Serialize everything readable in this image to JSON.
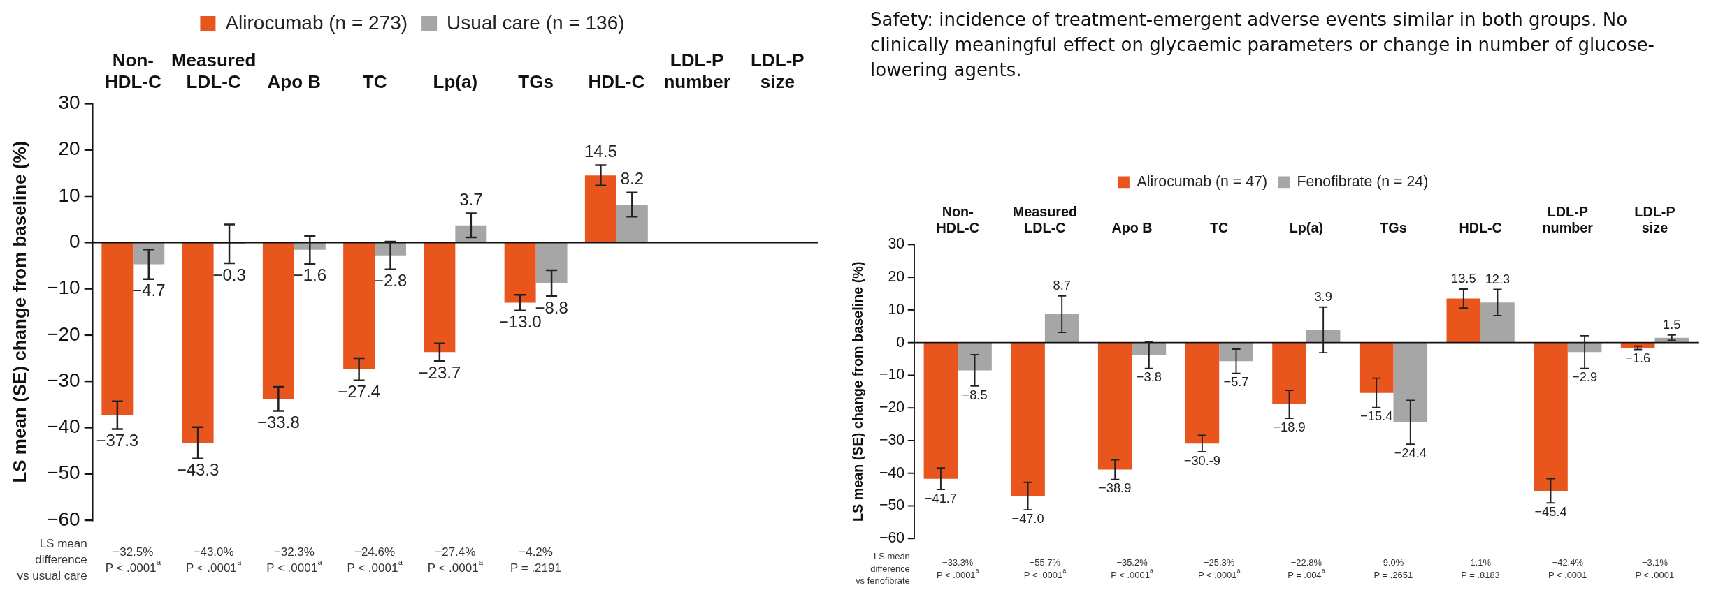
{
  "chart_data": [
    {
      "type": "bar",
      "ylabel": "LS mean (SE) change from baseline (%)",
      "categories": [
        "Non-\nHDL-C",
        "Measured\nLDL-C",
        "Apo B",
        "TC",
        "Lp(a)",
        "TGs",
        "HDL-C",
        "LDL-P\nnumber",
        "LDL-P\nsize"
      ],
      "series": [
        {
          "name": "Alirocumab (n = 273)",
          "color": "#e8561e",
          "values": [
            -37.3,
            -43.3,
            -33.8,
            -27.4,
            -23.7,
            -13.0,
            14.5,
            null,
            null
          ],
          "errors": [
            3,
            3.4,
            2.6,
            2.4,
            1.9,
            1.7,
            2.2,
            null,
            null
          ],
          "value_labels": [
            "−37.3",
            "−43.3",
            "−33.8",
            "−27.4",
            "−23.7",
            "−13.0",
            "14.5",
            null,
            null
          ]
        },
        {
          "name": "Usual care (n = 136)",
          "color": "#a6a6a6",
          "values": [
            -4.7,
            -0.3,
            -1.6,
            -2.8,
            3.7,
            -8.8,
            8.2,
            null,
            null
          ],
          "errors": [
            3.2,
            4.2,
            3,
            3,
            2.6,
            2.8,
            2.6,
            null,
            null
          ],
          "value_labels": [
            "−4.7",
            "−0.3",
            "−1.6",
            "−2.8",
            "3.7",
            "−8.8",
            "8.2",
            null,
            null
          ]
        }
      ],
      "ylim": [
        -60,
        30
      ],
      "yticks": [
        -60,
        -50,
        -40,
        -30,
        -20,
        -10,
        0,
        10,
        20,
        30
      ],
      "legend": "top",
      "annotations": [
        "LS mean\ndifference\nvs usual care",
        "−32.5%\nP < .0001$^{a}$",
        "−43.0%\nP < .0001$^{a}$",
        "−32.3%\nP < .0001$^{a}$",
        "−24.6%\nP < .0001$^{a}$",
        "−27.4%\nP < .0001$^{a}$",
        "−4.2%\nP = .2191"
      ]
    },
    {
      "type": "bar",
      "ylabel": "LS mean (SE) change from baseline (%)",
      "categories": [
        "Non-\nHDL-C",
        "Measured\nLDL-C",
        "Apo B",
        "TC",
        "Lp(a)",
        "TGs",
        "HDL-C",
        "LDL-P\nnumber",
        "LDL-P\nsize"
      ],
      "series": [
        {
          "name": "Alirocumab (n = 47)",
          "color": "#e8561e",
          "values": [
            -41.7,
            -47.0,
            -38.9,
            -30.9,
            -18.9,
            -15.4,
            13.5,
            -45.4,
            -1.6
          ],
          "errors": [
            3.3,
            4.2,
            3,
            2.5,
            4.3,
            4.5,
            2.9,
            3.7,
            0.5
          ],
          "value_labels": [
            "−41.7",
            "−47.0",
            "−38.9",
            "−30.-9",
            "−18.9",
            "−15.4",
            "13.5",
            "−45.4",
            "−1.6"
          ]
        },
        {
          "name": "Fenofibrate (n = 24)",
          "color": "#a6a6a6",
          "values": [
            -8.5,
            8.7,
            -3.8,
            -5.7,
            3.9,
            -24.4,
            12.3,
            -2.9,
            1.5
          ],
          "errors": [
            4.8,
            5.6,
            4.1,
            3.7,
            7,
            6.7,
            4,
            5,
            0.8
          ],
          "value_labels": [
            "−8.5",
            "8.7",
            "−3.8",
            "−5.7",
            "3.9",
            "−24.4",
            "12.3",
            "−2.9",
            "1.5"
          ]
        }
      ],
      "ylim": [
        -60,
        30
      ],
      "yticks": [
        -60,
        -50,
        -40,
        -30,
        -20,
        -10,
        0,
        10,
        20,
        30
      ],
      "legend": "top",
      "annotations": [
        "LS mean\ndifference\nvs fenofibrate",
        "−33.3%\nP < .0001$^{a}$",
        "−55.7%\nP < .0001$^{a}$",
        "−35.2%\nP < .0001$^{a}$",
        "−25.3%\nP < .0001$^{a}$",
        "−22.8%\nP = .004$^{a}$",
        "9.0%\nP = .2651",
        "1.1%\nP = .8183",
        "−42.4%\nP < .0001",
        "−3.1%\nP < .0001",
        "Safety: incidence of treatment-emergent adverse events similar in both groups. No clinically meaningful effect on glycaemic parameters or change in number of glucose-lowering agents."
      ]
    }
  ]
}
